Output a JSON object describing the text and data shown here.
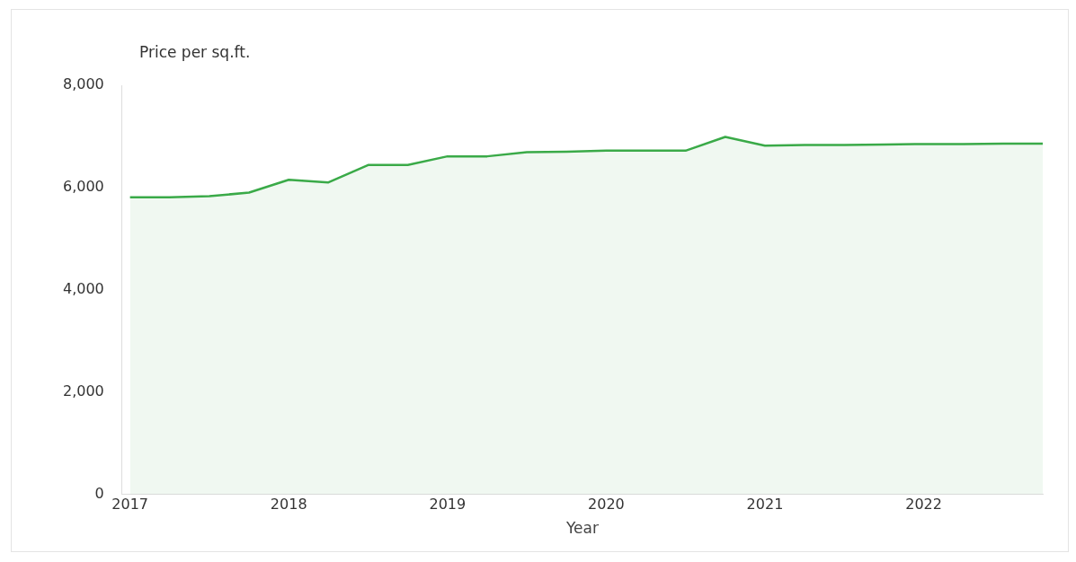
{
  "chart_data": {
    "type": "area",
    "xlabel": "Year",
    "ylabel": "Price per sq.ft.",
    "x": [
      2017,
      2017.25,
      2017.5,
      2017.75,
      2018,
      2018.25,
      2018.5,
      2018.75,
      2019,
      2019.25,
      2019.5,
      2019.75,
      2020,
      2020.25,
      2020.5,
      2020.75,
      2021,
      2021.25,
      2021.5,
      2021.75,
      2022,
      2022.25,
      2022.5,
      2022.75
    ],
    "series": [
      {
        "color": "#3aaa48",
        "values": [
          5810,
          5810,
          5830,
          5900,
          6150,
          6100,
          6440,
          6440,
          6610,
          6610,
          6690,
          6700,
          6720,
          6720,
          6720,
          6990,
          6820,
          6830,
          6830,
          6840,
          6850,
          6850,
          6860,
          6860
        ]
      }
    ],
    "xlim": [
      2016.95,
      2022.75
    ],
    "xticks": [
      2017,
      2018,
      2019,
      2020,
      2021,
      2022
    ],
    "ylim": [
      0,
      8000
    ],
    "yticks": [
      {
        "value": 0,
        "label": "0"
      },
      {
        "value": 2000,
        "label": "2,000"
      },
      {
        "value": 4000,
        "label": "4,000"
      },
      {
        "value": 6000,
        "label": "6,000"
      },
      {
        "value": 8000,
        "label": "8,000"
      }
    ],
    "grid": false,
    "legend": false
  }
}
